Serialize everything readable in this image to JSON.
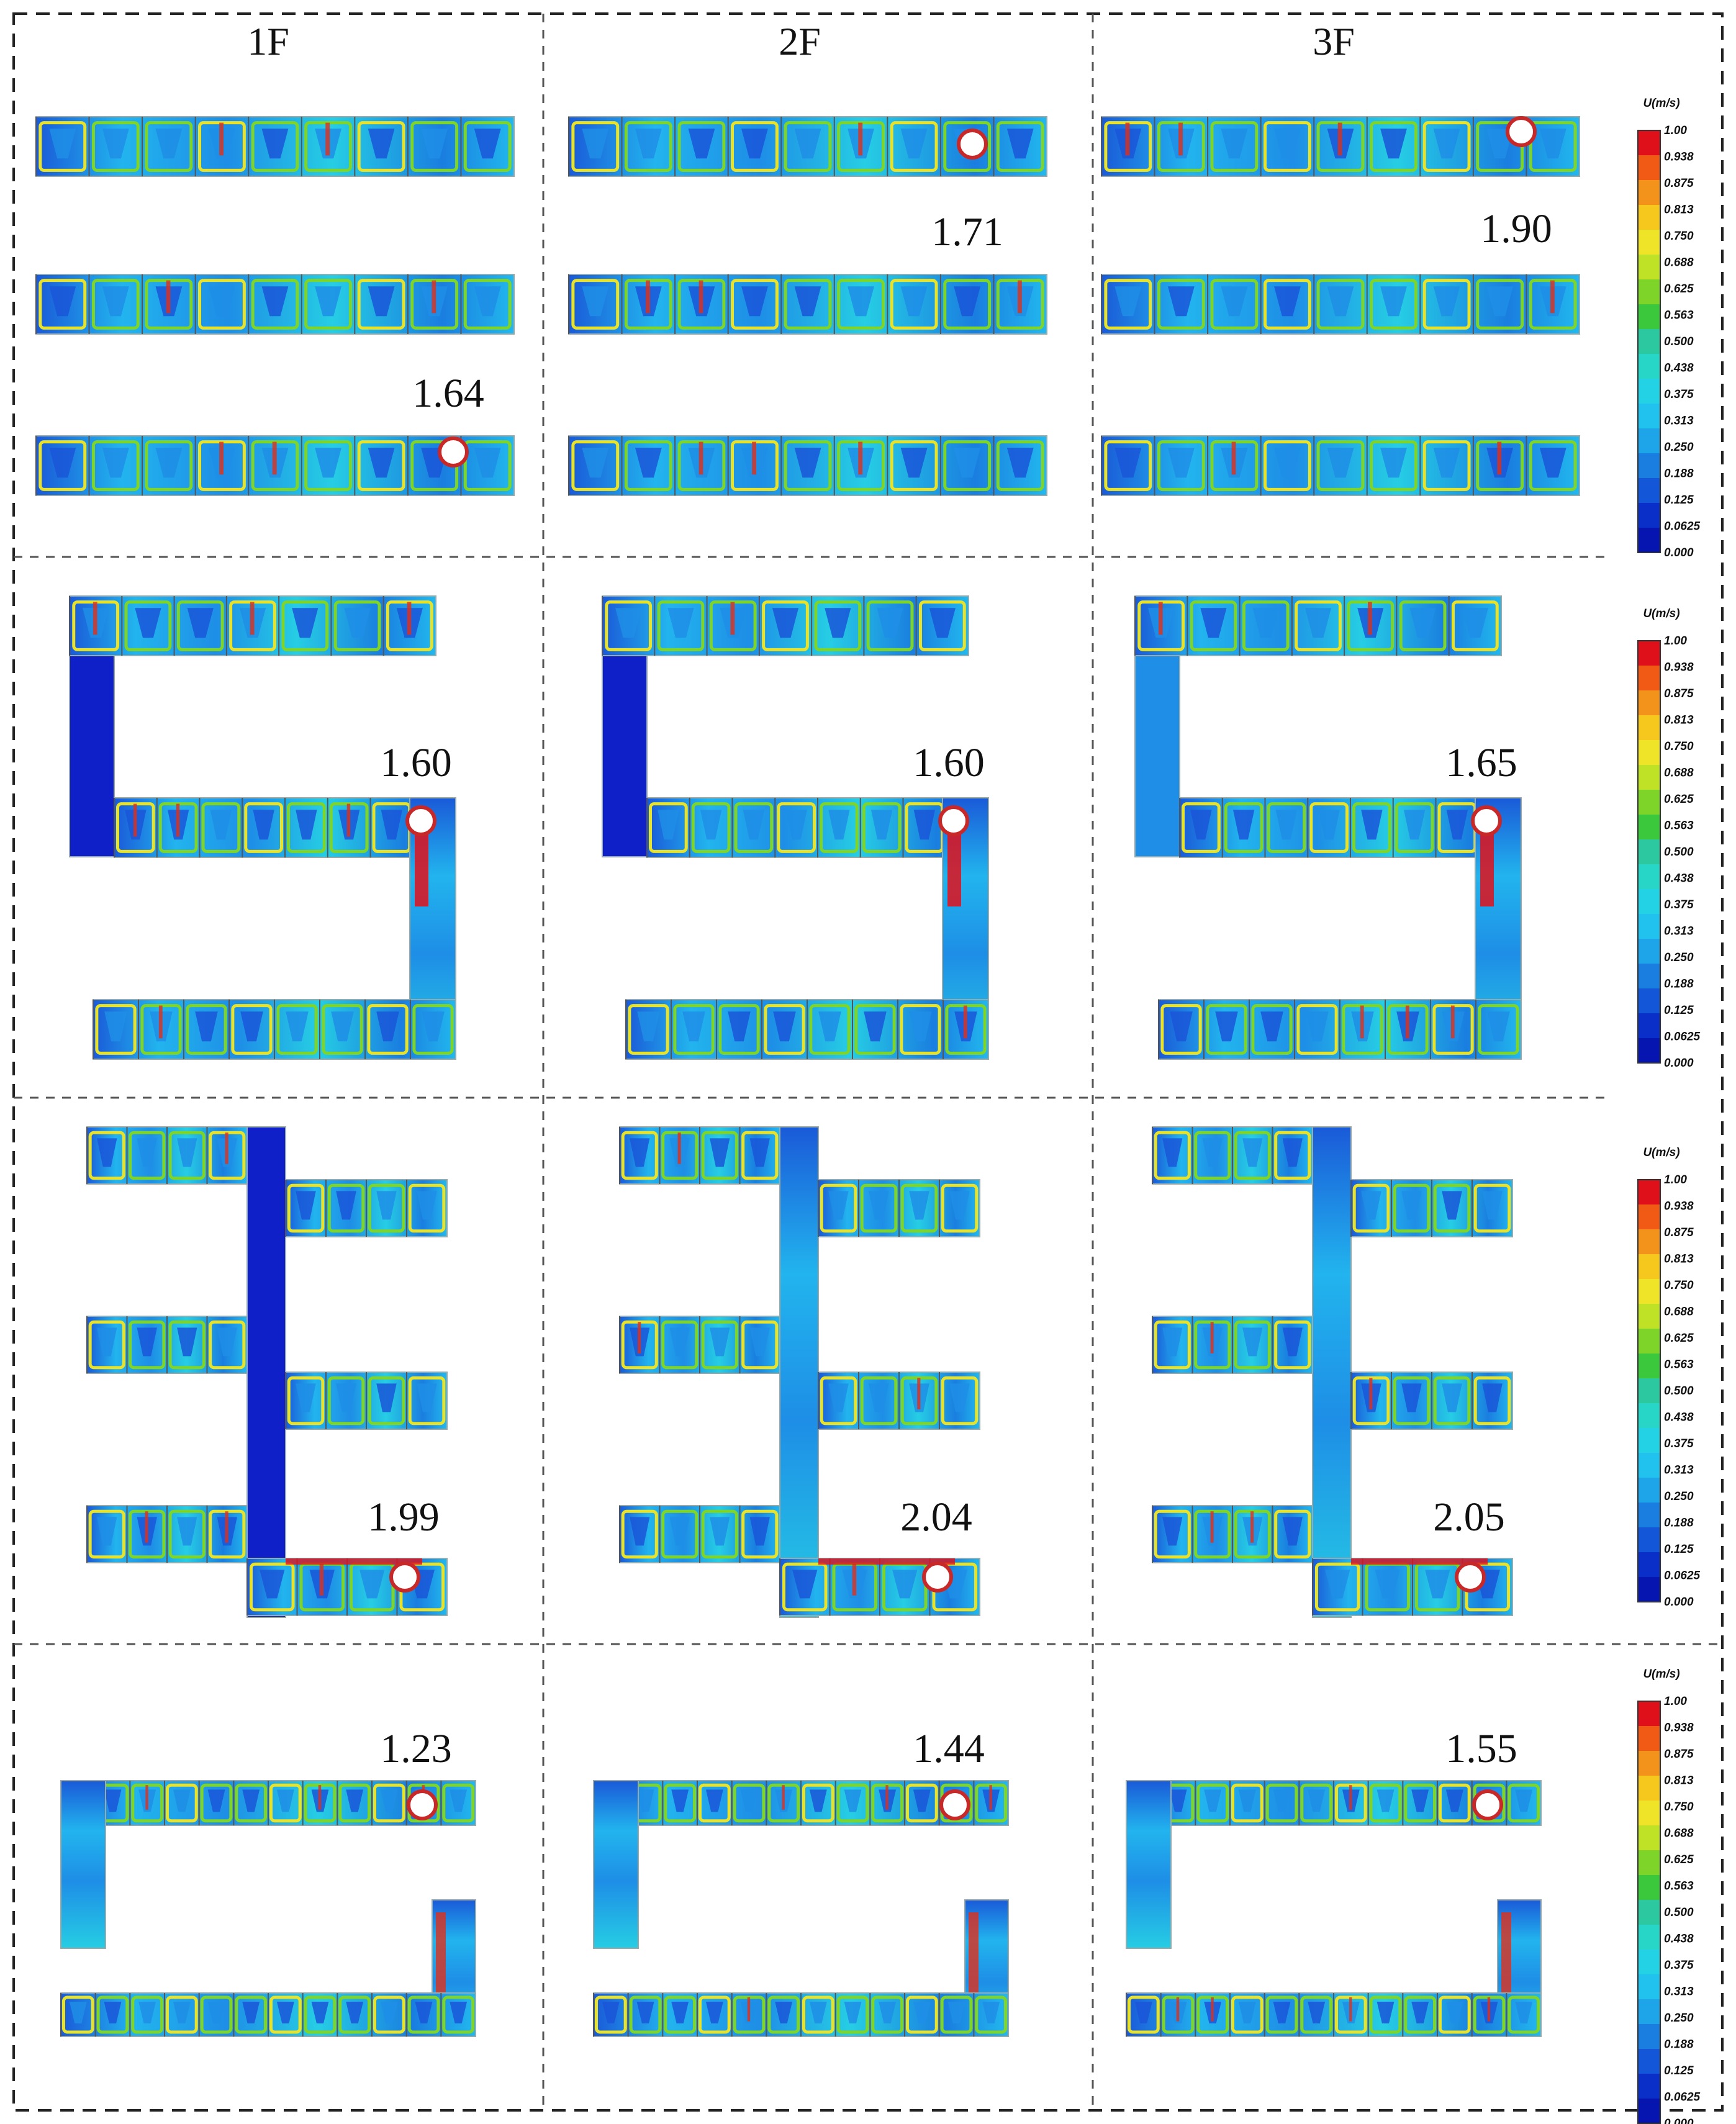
{
  "figure": {
    "columns": [
      "1F",
      "2F",
      "3F"
    ],
    "colorbar": {
      "title": "U(m/s)",
      "ticks": [
        "1.00",
        "0.938",
        "0.875",
        "0.813",
        "0.750",
        "0.688",
        "0.625",
        "0.563",
        "0.500",
        "0.438",
        "0.375",
        "0.313",
        "0.250",
        "0.188",
        "0.125",
        "0.0625",
        "0.000"
      ],
      "colors": [
        "#e0101a",
        "#f05a14",
        "#f4931c",
        "#f6c81e",
        "#f0e428",
        "#bfe226",
        "#7fd42a",
        "#3cc83c",
        "#2cc8a0",
        "#28d6c8",
        "#24d2e6",
        "#22c2ee",
        "#1ea4e8",
        "#1a7ee0",
        "#1456d8",
        "#0a2ec8",
        "#0614b0"
      ]
    },
    "accent_colors": {
      "marker_fill": "#ffffff",
      "marker_stroke": "#c82828",
      "divider": "#555555"
    },
    "rows": [
      {
        "layout": "three-corridors",
        "values": [
          "1.64",
          "1.71",
          "1.90"
        ]
      },
      {
        "layout": "s-shape",
        "values": [
          "1.60",
          "1.60",
          "1.65"
        ]
      },
      {
        "layout": "e-shape",
        "values": [
          "1.99",
          "2.04",
          "2.05"
        ]
      },
      {
        "layout": "c-shape",
        "values": [
          "1.23",
          "1.44",
          "1.55"
        ]
      }
    ]
  }
}
